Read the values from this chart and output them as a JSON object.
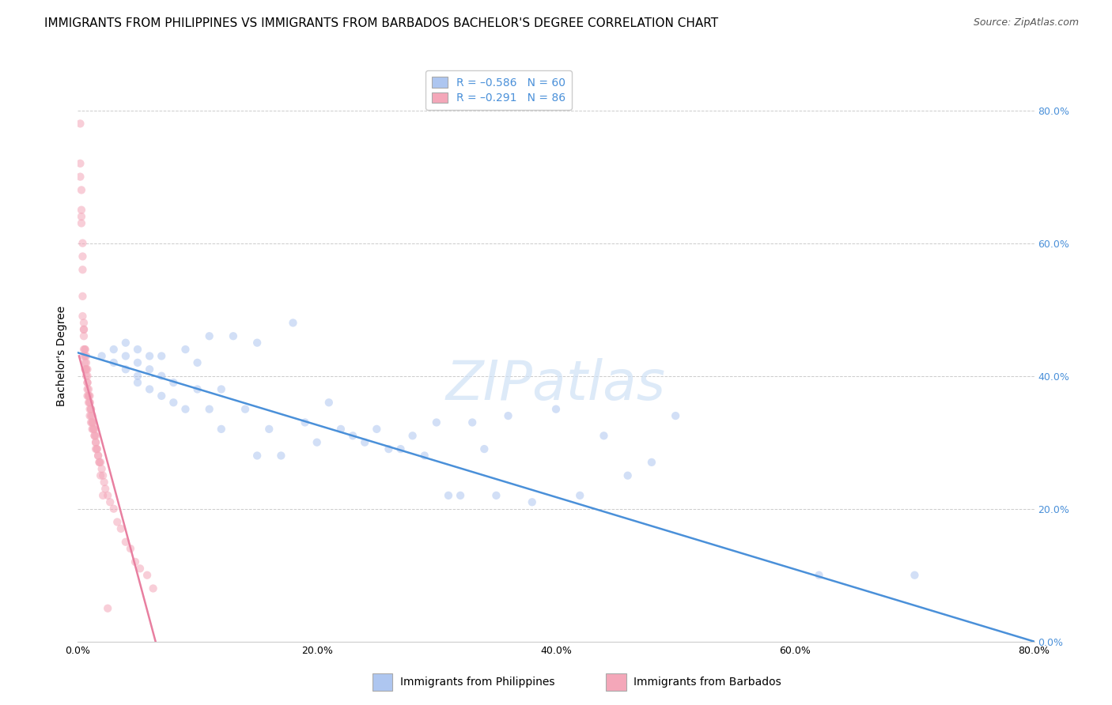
{
  "title": "IMMIGRANTS FROM PHILIPPINES VS IMMIGRANTS FROM BARBADOS BACHELOR'S DEGREE CORRELATION CHART",
  "source": "Source: ZipAtlas.com",
  "ylabel": "Bachelor's Degree",
  "watermark": "ZIPatlas",
  "xlim": [
    0.0,
    0.8
  ],
  "ylim": [
    0.0,
    0.86
  ],
  "xticks": [
    0.0,
    0.2,
    0.4,
    0.6,
    0.8
  ],
  "yticks": [
    0.0,
    0.2,
    0.4,
    0.6,
    0.8
  ],
  "blue_scatter_x": [
    0.02,
    0.03,
    0.03,
    0.04,
    0.04,
    0.04,
    0.05,
    0.05,
    0.05,
    0.05,
    0.06,
    0.06,
    0.06,
    0.07,
    0.07,
    0.07,
    0.08,
    0.08,
    0.09,
    0.09,
    0.1,
    0.1,
    0.11,
    0.11,
    0.12,
    0.12,
    0.13,
    0.14,
    0.15,
    0.15,
    0.16,
    0.17,
    0.18,
    0.19,
    0.2,
    0.21,
    0.22,
    0.23,
    0.24,
    0.25,
    0.26,
    0.27,
    0.28,
    0.29,
    0.3,
    0.31,
    0.32,
    0.33,
    0.34,
    0.35,
    0.36,
    0.38,
    0.4,
    0.42,
    0.44,
    0.46,
    0.48,
    0.5,
    0.62,
    0.7
  ],
  "blue_scatter_y": [
    0.43,
    0.44,
    0.42,
    0.41,
    0.43,
    0.45,
    0.39,
    0.42,
    0.44,
    0.4,
    0.38,
    0.41,
    0.43,
    0.37,
    0.4,
    0.43,
    0.36,
    0.39,
    0.35,
    0.44,
    0.38,
    0.42,
    0.35,
    0.46,
    0.32,
    0.38,
    0.46,
    0.35,
    0.28,
    0.45,
    0.32,
    0.28,
    0.48,
    0.33,
    0.3,
    0.36,
    0.32,
    0.31,
    0.3,
    0.32,
    0.29,
    0.29,
    0.31,
    0.28,
    0.33,
    0.22,
    0.22,
    0.33,
    0.29,
    0.22,
    0.34,
    0.21,
    0.35,
    0.22,
    0.31,
    0.25,
    0.27,
    0.34,
    0.1,
    0.1
  ],
  "pink_scatter_x": [
    0.002,
    0.002,
    0.003,
    0.003,
    0.003,
    0.004,
    0.004,
    0.004,
    0.004,
    0.005,
    0.005,
    0.005,
    0.005,
    0.005,
    0.006,
    0.006,
    0.006,
    0.006,
    0.007,
    0.007,
    0.007,
    0.007,
    0.008,
    0.008,
    0.008,
    0.008,
    0.008,
    0.009,
    0.009,
    0.009,
    0.01,
    0.01,
    0.01,
    0.01,
    0.011,
    0.011,
    0.011,
    0.012,
    0.012,
    0.012,
    0.013,
    0.013,
    0.014,
    0.014,
    0.015,
    0.015,
    0.015,
    0.016,
    0.017,
    0.018,
    0.019,
    0.02,
    0.021,
    0.022,
    0.023,
    0.025,
    0.027,
    0.03,
    0.033,
    0.036,
    0.04,
    0.044,
    0.048,
    0.052,
    0.058,
    0.063,
    0.002,
    0.003,
    0.004,
    0.005,
    0.006,
    0.007,
    0.008,
    0.009,
    0.01,
    0.011,
    0.012,
    0.013,
    0.014,
    0.015,
    0.016,
    0.017,
    0.018,
    0.019,
    0.021,
    0.025
  ],
  "pink_scatter_y": [
    0.78,
    0.72,
    0.68,
    0.65,
    0.63,
    0.6,
    0.56,
    0.52,
    0.49,
    0.48,
    0.47,
    0.46,
    0.44,
    0.43,
    0.44,
    0.43,
    0.42,
    0.41,
    0.43,
    0.42,
    0.41,
    0.4,
    0.41,
    0.4,
    0.39,
    0.38,
    0.37,
    0.38,
    0.37,
    0.36,
    0.37,
    0.36,
    0.35,
    0.34,
    0.35,
    0.34,
    0.33,
    0.34,
    0.33,
    0.32,
    0.33,
    0.32,
    0.32,
    0.31,
    0.31,
    0.3,
    0.29,
    0.29,
    0.28,
    0.27,
    0.27,
    0.26,
    0.25,
    0.24,
    0.23,
    0.22,
    0.21,
    0.2,
    0.18,
    0.17,
    0.15,
    0.14,
    0.12,
    0.11,
    0.1,
    0.08,
    0.7,
    0.64,
    0.58,
    0.47,
    0.44,
    0.41,
    0.39,
    0.37,
    0.36,
    0.35,
    0.33,
    0.32,
    0.31,
    0.3,
    0.29,
    0.28,
    0.27,
    0.25,
    0.22,
    0.05
  ],
  "blue_line_x": [
    0.0,
    0.8
  ],
  "blue_line_y": [
    0.435,
    0.0
  ],
  "pink_line_x": [
    0.001,
    0.065
  ],
  "pink_line_y": [
    0.43,
    0.0
  ],
  "blue_scatter_color": "#aec6f0",
  "pink_scatter_color": "#f4a7b9",
  "blue_line_color": "#4a90d9",
  "pink_line_color": "#e87fa0",
  "background_color": "#ffffff",
  "grid_color": "#cccccc",
  "title_fontsize": 11,
  "axis_label_fontsize": 10,
  "tick_fontsize": 9,
  "legend_fontsize": 10,
  "scatter_size": 55,
  "scatter_alpha": 0.55,
  "line_width": 1.8,
  "right_ytick_color": "#4a90d9",
  "legend_label_1": "R = –0.586   N = 60",
  "legend_label_2": "R = –0.291   N = 86",
  "bottom_label_1": "Immigrants from Philippines",
  "bottom_label_2": "Immigrants from Barbados"
}
